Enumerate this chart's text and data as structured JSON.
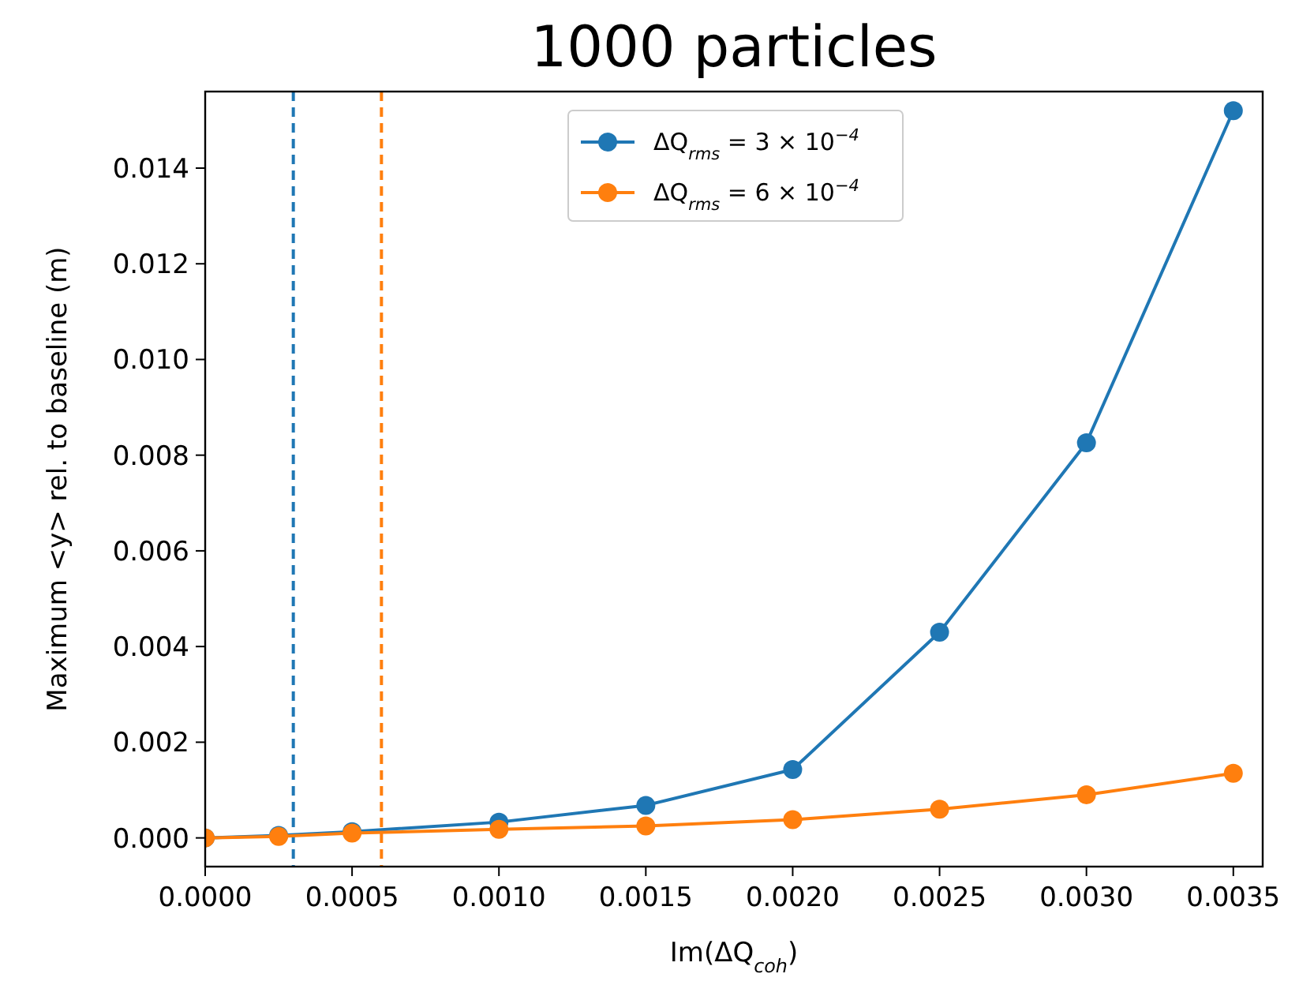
{
  "chart_data": {
    "type": "line",
    "title": "1000 particles",
    "xlabel": "Im(ΔQ$_{coh}$)",
    "ylabel": "Maximum <y> rel. to baseline (m)",
    "x": [
      0,
      0.00025,
      0.0005,
      0.001,
      0.0015,
      0.002,
      0.0025,
      0.003,
      0.0035
    ],
    "series": [
      {
        "name": "ΔQ$_{rms}$ = 3 × 10$^{−4}$",
        "color": "#1f77b4",
        "values": [
          0,
          5e-05,
          0.00013,
          0.00033,
          0.00068,
          0.00143,
          0.0043,
          0.00826,
          0.0152
        ]
      },
      {
        "name": "ΔQ$_{rms}$ = 6 × 10$^{−4}$",
        "color": "#ff7f0e",
        "values": [
          0,
          3e-05,
          0.0001,
          0.00018,
          0.00025,
          0.00038,
          0.0006,
          0.0009,
          0.00135
        ]
      }
    ],
    "xlim": [
      0,
      0.0036
    ],
    "ylim": [
      -0.0006,
      0.0156
    ],
    "xticks": [
      {
        "value": 0,
        "label": "0.0000"
      },
      0.0005,
      {
        "value": 0.001,
        "label": "0.0010"
      },
      0.0015,
      {
        "value": 0.002,
        "label": "0.0020"
      },
      0.0025,
      {
        "value": 0.003,
        "label": "0.0030"
      },
      0.0035
    ],
    "yticks": [
      {
        "value": 0,
        "label": "0.000"
      },
      0.002,
      0.004,
      0.006,
      0.008,
      {
        "value": 0.01,
        "label": "0.010"
      },
      0.012,
      0.014
    ],
    "ref_lines": [
      {
        "axis": "x",
        "value": 0.0003,
        "color": "#1f77b4",
        "line_style": "dashed"
      },
      {
        "axis": "x",
        "value": 0.0006,
        "color": "#ff7f0e",
        "line_style": "dashed"
      }
    ],
    "marker": "circle",
    "line_style": "solid",
    "legend": "top",
    "grid": false
  }
}
